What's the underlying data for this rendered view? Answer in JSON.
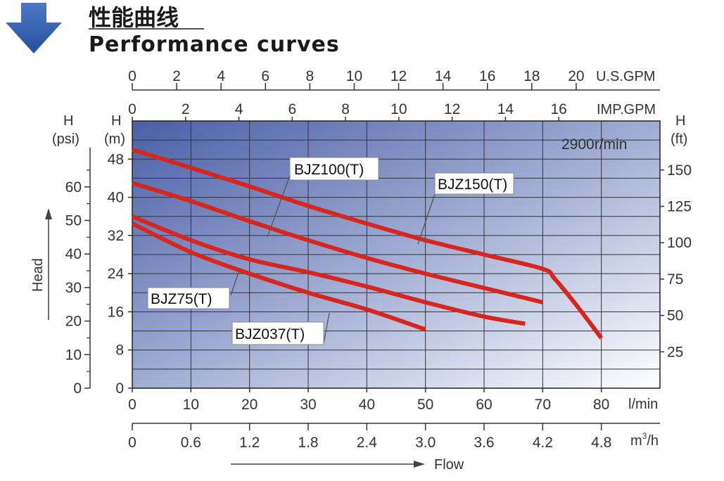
{
  "header": {
    "title_cn": "性能曲线",
    "title_en": "Performance curves",
    "arrow_icon": "arrow-down-icon",
    "arrow_color": "#2f5aa6"
  },
  "chart_data": {
    "type": "line",
    "speed_note": "2900r/min",
    "xlabel": "Flow",
    "ylabel": "Head",
    "x_units": {
      "lpm": "l/min",
      "m3h_base": "m",
      "m3h_sup": "3",
      "m3h_tail": "/h",
      "usgpm": "U.S.GPM",
      "impgpm": "IMP.GPM"
    },
    "y_units": {
      "m_top": "H",
      "m_bottom": "(m)",
      "psi_top": "H",
      "psi_bottom": "(psi)",
      "ft_top": "H",
      "ft_bottom": "(ft)"
    },
    "xlim": [
      0,
      90
    ],
    "ylim_m": [
      0,
      56
    ],
    "x_ticks_lpm": [
      "0",
      "10",
      "20",
      "30",
      "40",
      "50",
      "60",
      "70",
      "80"
    ],
    "x_ticks_m3h": [
      "0",
      "0.6",
      "1.2",
      "1.8",
      "2.4",
      "3.0",
      "3.6",
      "4.2",
      "4.8"
    ],
    "x_ticks_usgpm": [
      "0",
      "2",
      "4",
      "6",
      "8",
      "10",
      "12",
      "14",
      "16",
      "18",
      "20"
    ],
    "x_ticks_impgpm": [
      "0",
      "2",
      "4",
      "6",
      "8",
      "10",
      "12",
      "14",
      "16"
    ],
    "y_ticks_m": [
      "0",
      "8",
      "16",
      "24",
      "32",
      "40",
      "48"
    ],
    "y_ticks_psi": [
      "0",
      "10",
      "20",
      "30",
      "40",
      "50",
      "60"
    ],
    "y_ticks_ft": [
      "25",
      "50",
      "75",
      "100",
      "125",
      "150"
    ],
    "colors": {
      "curve": "#d7261e",
      "grid": "#333333",
      "bg_dark": "#4a5fa6",
      "bg_light": "#ffffff"
    },
    "series": [
      {
        "name": "BJZ100(T)",
        "x": [
          0,
          10,
          20,
          30,
          40,
          50,
          60,
          70,
          72,
          76,
          80
        ],
        "y": [
          50,
          46.2,
          42.3,
          38.2,
          34.5,
          31,
          28,
          25,
          23,
          17,
          10.5
        ]
      },
      {
        "name": "BJZ150(T)",
        "x": [
          0,
          10,
          20,
          30,
          40,
          50,
          60,
          70
        ],
        "y": [
          43,
          39.2,
          35,
          31,
          27.3,
          24,
          21,
          18
        ]
      },
      {
        "name": "BJZ75(T)",
        "x": [
          0,
          10,
          20,
          30,
          40,
          50,
          60,
          67
        ],
        "y": [
          36,
          31,
          27,
          24.3,
          21.3,
          18,
          15,
          13.5
        ]
      },
      {
        "name": "BJZ037(T)",
        "x": [
          0,
          10,
          20,
          30,
          40,
          50
        ],
        "y": [
          34.5,
          28.5,
          24,
          20,
          16.5,
          12.3
        ]
      }
    ]
  }
}
